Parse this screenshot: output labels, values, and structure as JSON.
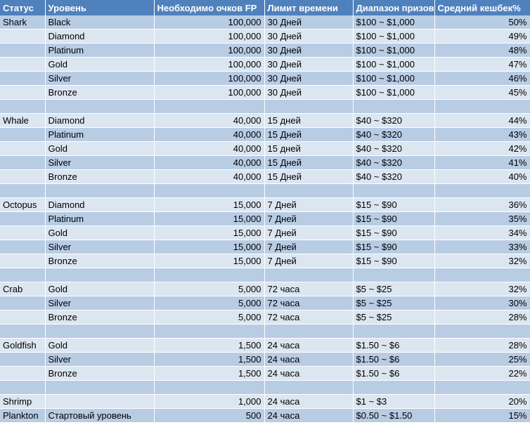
{
  "colors": {
    "header_bg": "#4f81bd",
    "row_light": "#dce6f1",
    "row_dark": "#b8cce4"
  },
  "headers": [
    "Статус",
    "Уровень",
    "Необходимо очков FP",
    "Лимит времени",
    "Диапазон призов",
    "Средний кешбек%"
  ],
  "rows": [
    [
      "Shark",
      "Black",
      "100,000",
      "30 Дней",
      "$100 ~ $1,000",
      "50%"
    ],
    [
      "",
      "Diamond",
      "100,000",
      "30 Дней",
      "$100 ~ $1,000",
      "49%"
    ],
    [
      "",
      "Platinum",
      "100,000",
      "30 Дней",
      "$100 ~ $1,000",
      "48%"
    ],
    [
      "",
      "Gold",
      "100,000",
      "30 Дней",
      "$100 ~ $1,000",
      "47%"
    ],
    [
      "",
      "Silver",
      "100,000",
      "30 Дней",
      "$100 ~ $1,000",
      "46%"
    ],
    [
      "",
      "Bronze",
      "100,000",
      "30 Дней",
      "$100 ~ $1,000",
      "45%"
    ],
    [
      "",
      "",
      "",
      "",
      "",
      ""
    ],
    [
      "Whale",
      "Diamond",
      "40,000",
      "15 дней",
      "$40 ~ $320",
      "44%"
    ],
    [
      "",
      "Platinum",
      "40,000",
      "15 Дней",
      "$40 ~ $320",
      "43%"
    ],
    [
      "",
      "Gold",
      "40,000",
      "15 дней",
      "$40 ~ $320",
      "42%"
    ],
    [
      "",
      "Silver",
      "40,000",
      "15 Дней",
      "$40 ~ $320",
      "41%"
    ],
    [
      "",
      "Bronze",
      "40,000",
      "15 Дней",
      "$40 ~ $320",
      "40%"
    ],
    [
      "",
      "",
      "",
      "",
      "",
      ""
    ],
    [
      "Octopus",
      "Diamond",
      "15,000",
      "7 Дней",
      "$15 ~ $90",
      "36%"
    ],
    [
      "",
      "Platinum",
      "15,000",
      "7 Дней",
      "$15 ~ $90",
      "35%"
    ],
    [
      "",
      "Gold",
      "15,000",
      "7 Дней",
      "$15 ~ $90",
      "34%"
    ],
    [
      "",
      "Silver",
      "15,000",
      "7 Дней",
      "$15 ~ $90",
      "33%"
    ],
    [
      "",
      "Bronze",
      "15,000",
      "7 Дней",
      "$15 ~ $90",
      "32%"
    ],
    [
      "",
      "",
      "",
      "",
      "",
      ""
    ],
    [
      "Crab",
      "Gold",
      "5,000",
      "72 часа",
      "$5 ~ $25",
      "32%"
    ],
    [
      "",
      "Silver",
      "5,000",
      "72 часа",
      "$5 ~ $25",
      "30%"
    ],
    [
      "",
      "Bronze",
      "5,000",
      "72 часа",
      "$5 ~ $25",
      "28%"
    ],
    [
      "",
      "",
      "",
      "",
      "",
      ""
    ],
    [
      "Goldfish",
      "Gold",
      "1,500",
      "24 часа",
      "$1.50 ~ $6",
      "28%"
    ],
    [
      "",
      "Silver",
      "1,500",
      "24 часа",
      "$1.50 ~ $6",
      "25%"
    ],
    [
      "",
      "Bronze",
      "1,500",
      "24 часа",
      "$1.50 ~ $6",
      "22%"
    ],
    [
      "",
      "",
      "",
      "",
      "",
      ""
    ],
    [
      "Shrimp",
      "",
      "1,000",
      "24 часа",
      "$1 ~ $3",
      "20%"
    ],
    [
      "Plankton",
      "Стартовый уровень",
      "500",
      "24 часа",
      "$0.50 ~ $1.50",
      "15%"
    ]
  ]
}
